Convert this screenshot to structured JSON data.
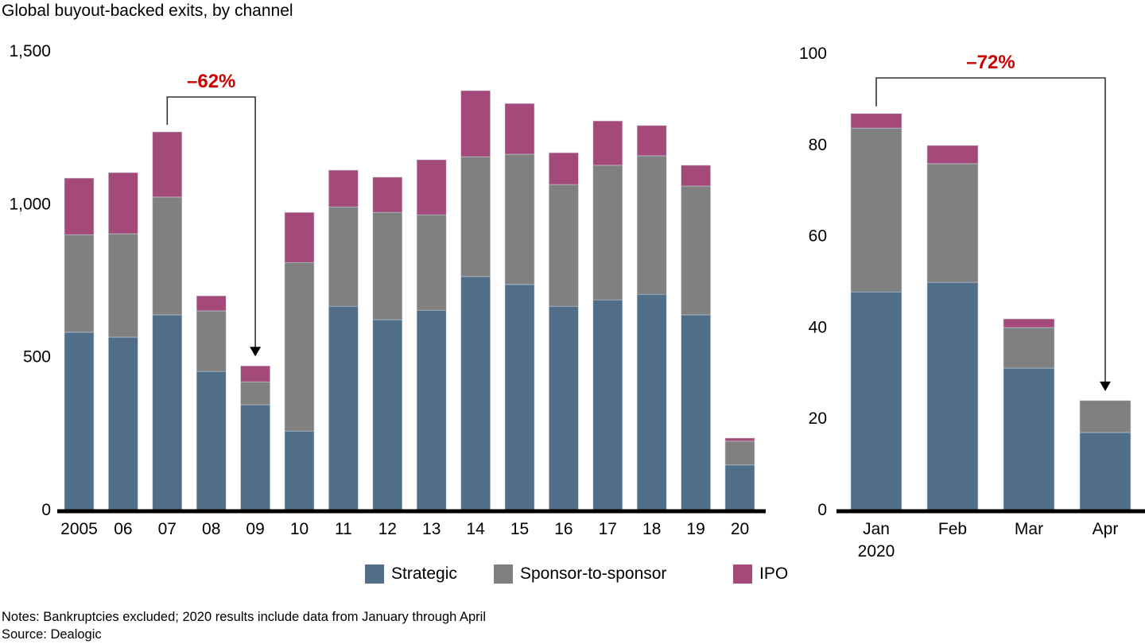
{
  "title": "Global buyout-backed exits, by channel",
  "notes": "Notes: Bankruptcies excluded; 2020 results include data from January through April",
  "source": "Source: Dealogic",
  "colors": {
    "strategic": "#506E88",
    "sponsor": "#808080",
    "ipo": "#A34A7B",
    "annotation": "#CC0000",
    "axis": "#000000"
  },
  "legend": [
    {
      "key": "strategic",
      "label": "Strategic"
    },
    {
      "key": "sponsor",
      "label": "Sponsor-to-sponsor"
    },
    {
      "key": "ipo",
      "label": "IPO"
    }
  ],
  "chart_data": [
    {
      "type": "bar",
      "stacked": true,
      "title": "Global buyout-backed exits, by channel",
      "xlabel": "",
      "ylabel": "",
      "ylim": [
        0,
        1500
      ],
      "yticks": [
        0,
        500,
        1000,
        1500
      ],
      "ytick_labels": [
        "0",
        "500",
        "1,000",
        "1,500"
      ],
      "grid": false,
      "categories": [
        "2005",
        "06",
        "07",
        "08",
        "09",
        "10",
        "11",
        "12",
        "13",
        "14",
        "15",
        "16",
        "17",
        "18",
        "19",
        "20"
      ],
      "series": [
        {
          "name": "Strategic",
          "key": "strategic",
          "values": [
            580,
            564,
            637,
            452,
            343,
            257,
            665,
            621,
            652,
            762,
            736,
            665,
            686,
            704,
            637,
            146
          ]
        },
        {
          "name": "Sponsor-to-sponsor",
          "key": "sponsor",
          "values": [
            319,
            338,
            385,
            198,
            75,
            551,
            325,
            351,
            312,
            392,
            426,
            398,
            440,
            453,
            421,
            78
          ]
        },
        {
          "name": "IPO",
          "key": "ipo",
          "values": [
            185,
            200,
            213,
            49,
            52,
            164,
            120,
            115,
            180,
            216,
            166,
            104,
            145,
            99,
            68,
            10
          ]
        }
      ],
      "annotation": {
        "label": "–62%",
        "from": "07",
        "to": "09"
      }
    },
    {
      "type": "bar",
      "stacked": true,
      "title": "",
      "xlabel": "",
      "ylabel": "",
      "ylim": [
        0,
        100
      ],
      "yticks": [
        0,
        20,
        40,
        60,
        80,
        100
      ],
      "ytick_labels": [
        "0",
        "20",
        "40",
        "60",
        "80",
        "100"
      ],
      "grid": false,
      "categories": [
        "Jan\n2020",
        "Feb",
        "Mar",
        "Apr"
      ],
      "series": [
        {
          "name": "Strategic",
          "key": "strategic",
          "values": [
            47.7,
            49.8,
            31.0,
            16.9
          ]
        },
        {
          "name": "Sponsor-to-sponsor",
          "key": "sponsor",
          "values": [
            35.9,
            26.0,
            8.9,
            7.0
          ]
        },
        {
          "name": "IPO",
          "key": "ipo",
          "values": [
            3.2,
            4.0,
            1.9,
            0
          ]
        }
      ],
      "annotation": {
        "label": "–72%",
        "from": "Jan\n2020",
        "to": "Apr"
      }
    }
  ]
}
